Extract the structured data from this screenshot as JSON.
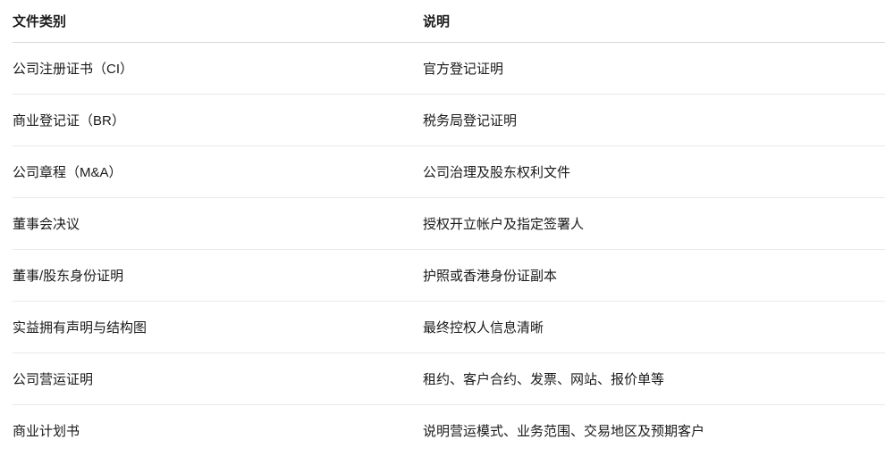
{
  "table": {
    "headers": {
      "category": "文件类别",
      "description": "说明"
    },
    "rows": [
      {
        "category": "公司注册证书（CI）",
        "description": "官方登记证明"
      },
      {
        "category": "商业登记证（BR）",
        "description": "税务局登记证明"
      },
      {
        "category": "公司章程（M&A）",
        "description": "公司治理及股东权利文件"
      },
      {
        "category": "董事会决议",
        "description": "授权开立帐户及指定签署人"
      },
      {
        "category": "董事/股东身份证明",
        "description": "护照或香港身份证副本"
      },
      {
        "category": "实益拥有声明与结构图",
        "description": "最终控权人信息清晰"
      },
      {
        "category": "公司营运证明",
        "description": "租约、客户合约、发票、网站、报价单等"
      },
      {
        "category": "商业计划书",
        "description": "说明营运模式、业务范围、交易地区及预期客户"
      }
    ],
    "colors": {
      "text": "#1a1a1a",
      "header_divider": "#d7d7d7",
      "row_divider": "#e9e9e9",
      "background": "#ffffff"
    }
  }
}
